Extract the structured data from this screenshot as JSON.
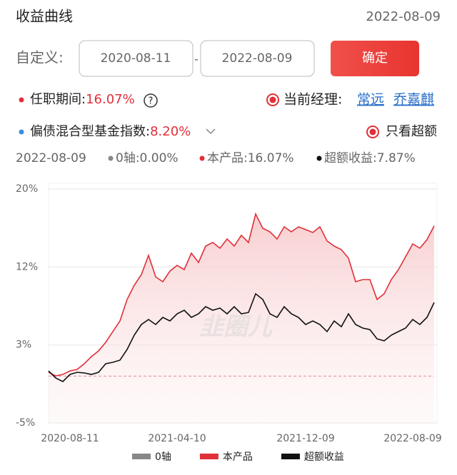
{
  "header": {
    "title": "收益曲线",
    "date": "2022-08-09"
  },
  "range": {
    "label": "自定义:",
    "start": "2020-08-11",
    "separator": "-",
    "end": "2022-08-09",
    "button": "确定"
  },
  "tenure": {
    "label": "任职期间:",
    "value": "16.07%",
    "help": "?"
  },
  "manager": {
    "label": "当前经理:",
    "names": [
      "常远",
      "乔嘉麒"
    ]
  },
  "benchmark": {
    "label": "偏债混合型基金指数:",
    "value": "8.20%"
  },
  "excess_toggle": "只看超额",
  "readout": {
    "date": "2022-08-09",
    "items": [
      "0轴:0.00%",
      "本产品:16.07%",
      "超额收益:7.87%"
    ]
  },
  "chart_data": {
    "type": "line",
    "watermark": "韭圈儿",
    "grid": true,
    "categories": [
      null,
      null,
      null,
      "2020-08-11",
      null,
      null,
      null,
      null,
      null,
      null,
      null,
      null,
      null,
      null,
      null,
      null,
      null,
      null,
      "2021-04-10",
      null,
      null,
      null,
      null,
      null,
      null,
      null,
      null,
      null,
      null,
      null,
      null,
      null,
      null,
      null,
      null,
      null,
      "2021-12-09",
      null,
      null,
      null,
      null,
      null,
      null,
      null,
      null,
      null,
      null,
      null,
      null,
      null,
      null,
      "2022-08-09",
      null,
      null,
      null
    ],
    "series": [
      {
        "name": "0轴",
        "color": "#888888",
        "dash": true,
        "values": [
          0,
          0,
          0,
          0,
          0,
          0,
          0,
          0,
          0,
          0,
          0,
          0,
          0,
          0,
          0,
          0,
          0,
          0,
          0,
          0,
          0,
          0,
          0,
          0,
          0,
          0,
          0,
          0,
          0,
          0,
          0,
          0,
          0,
          0,
          0,
          0,
          0,
          0,
          0,
          0,
          0,
          0,
          0,
          0,
          0,
          0,
          0,
          0,
          0,
          0,
          0,
          0,
          0,
          0,
          0
        ]
      },
      {
        "name": "本产品",
        "color": "#e0303a",
        "area": true,
        "values": [
          0.41,
          0.03,
          0.18,
          0.56,
          0.72,
          1.33,
          2.09,
          2.7,
          3.61,
          4.76,
          5.9,
          8.19,
          9.71,
          10.85,
          12.91,
          10.62,
          10.09,
          11.23,
          11.84,
          11.39,
          13.14,
          12.15,
          13.9,
          14.28,
          13.67,
          14.66,
          13.9,
          15.05,
          14.28,
          17.33,
          15.81,
          15.43,
          14.66,
          15.96,
          15.43,
          15.96,
          15.66,
          15.35,
          15.96,
          14.44,
          13.9,
          13.52,
          12.61,
          10.09,
          10.32,
          10.32,
          8.19,
          8.8,
          10.32,
          11.39,
          12.76,
          14.13,
          13.67,
          14.59,
          16.07
        ]
      },
      {
        "name": "超额收益",
        "color": "#111111",
        "values": [
          0.56,
          -0.2,
          -0.58,
          0.18,
          0.41,
          0.34,
          0.18,
          0.41,
          1.33,
          1.48,
          1.71,
          2.85,
          4.38,
          5.52,
          6.05,
          5.52,
          6.28,
          5.9,
          6.66,
          7.04,
          6.28,
          6.66,
          7.42,
          7.04,
          7.27,
          6.66,
          7.42,
          6.66,
          6.81,
          8.8,
          8.19,
          6.66,
          6.28,
          7.42,
          6.66,
          6.28,
          5.52,
          5.9,
          5.52,
          4.76,
          5.9,
          5.29,
          6.66,
          5.52,
          5.14,
          4.98,
          3.99,
          3.77,
          4.38,
          4.76,
          5.14,
          6.05,
          5.52,
          6.28,
          7.87
        ]
      }
    ],
    "ylim": [
      -5,
      20
    ],
    "yticks": [
      {
        "value": -5,
        "label": "-5%"
      },
      {
        "value": 3.33,
        "label": "3%"
      },
      {
        "value": 11.67,
        "label": "12%"
      },
      {
        "value": 20,
        "label": "20%"
      }
    ]
  }
}
